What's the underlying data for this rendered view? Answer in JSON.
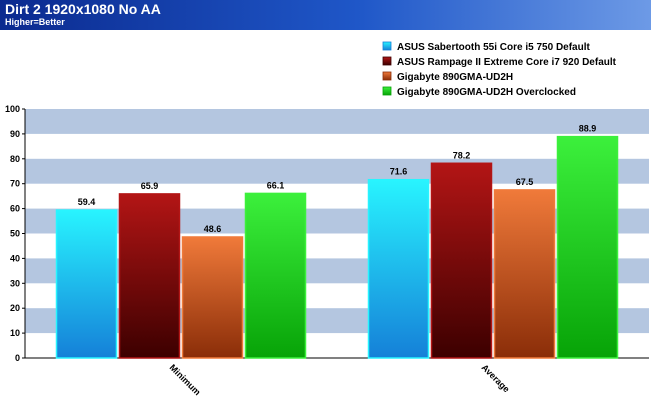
{
  "header": {
    "title": "Dirt 2 1920x1080 No AA",
    "subtitle": "Higher=Better"
  },
  "colors": {
    "header_start": "#0b2a8f",
    "header_end": "#6d9ae6",
    "band": "#b4c6e0",
    "axis": "#000000"
  },
  "chart_data": {
    "type": "bar",
    "title": "Dirt 2 1920x1080 No AA",
    "subtitle": "Higher=Better",
    "categories": [
      "Minimum",
      "Average"
    ],
    "series": [
      {
        "name": "ASUS Sabertooth 55i Core i5 750 Default",
        "values": [
          59.4,
          71.6
        ],
        "color_top": "#28f4ff",
        "color_bottom": "#1580d8"
      },
      {
        "name": "ASUS Rampage II Extreme Core i7 920 Default",
        "values": [
          65.9,
          78.2
        ],
        "color_top": "#b31515",
        "color_bottom": "#3c0000"
      },
      {
        "name": "Gigabyte 890GMA-UD2H",
        "values": [
          48.6,
          67.5
        ],
        "color_top": "#f07a3a",
        "color_bottom": "#8a2d08"
      },
      {
        "name": "Gigabyte 890GMA-UD2H Overclocked",
        "values": [
          66.1,
          88.9
        ],
        "color_top": "#3cf03c",
        "color_bottom": "#07a307"
      }
    ],
    "ylim": [
      0,
      100
    ],
    "yticks": [
      0,
      10,
      20,
      30,
      40,
      50,
      60,
      70,
      80,
      90,
      100
    ],
    "grid": "alternating horizontal bands",
    "legend_position": "top-right"
  }
}
